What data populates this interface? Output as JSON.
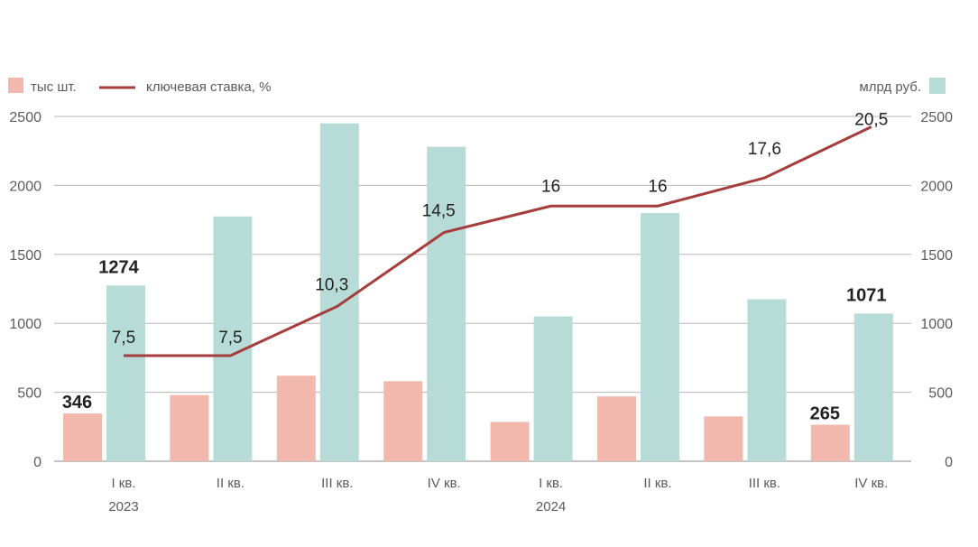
{
  "chart_data": {
    "type": "bar",
    "legend": {
      "units_label": "тыс шт.",
      "rate_label": "ключевая ставка, %",
      "rub_label": "млрд руб."
    },
    "categories": [
      "I кв.",
      "II кв.",
      "III кв.",
      "IV кв.",
      "I кв.",
      "II кв.",
      "III кв.",
      "IV кв."
    ],
    "years": [
      {
        "label": "2023",
        "index": 0
      },
      {
        "label": "2024",
        "index": 4
      }
    ],
    "ylim": [
      0,
      2500
    ],
    "yticks": [
      0,
      500,
      1000,
      1500,
      2000,
      2500
    ],
    "series": [
      {
        "name": "тыс шт.",
        "axis": "left",
        "color": "#f2b8ae",
        "values": [
          346,
          480,
          620,
          580,
          285,
          470,
          325,
          265
        ]
      },
      {
        "name": "млрд руб.",
        "axis": "right",
        "color": "#b7dbd6",
        "values": [
          1274,
          1775,
          2450,
          2280,
          1050,
          1800,
          1175,
          1071
        ]
      },
      {
        "name": "ключевая ставка, %",
        "type": "line",
        "color": "#a63d3d",
        "values": [
          7.5,
          7.5,
          10.3,
          14.5,
          16,
          16,
          17.6,
          20.5
        ]
      }
    ],
    "data_labels": [
      {
        "series": 0,
        "index": 0,
        "text": "346"
      },
      {
        "series": 0,
        "index": 7,
        "text": "265"
      },
      {
        "series": 1,
        "index": 0,
        "text": "1274"
      },
      {
        "series": 1,
        "index": 7,
        "text": "1071"
      }
    ],
    "rate_labels": [
      "7,5",
      "7,5",
      "10,3",
      "14,5",
      "16",
      "16",
      "17,6",
      "20,5"
    ],
    "grid": true
  }
}
